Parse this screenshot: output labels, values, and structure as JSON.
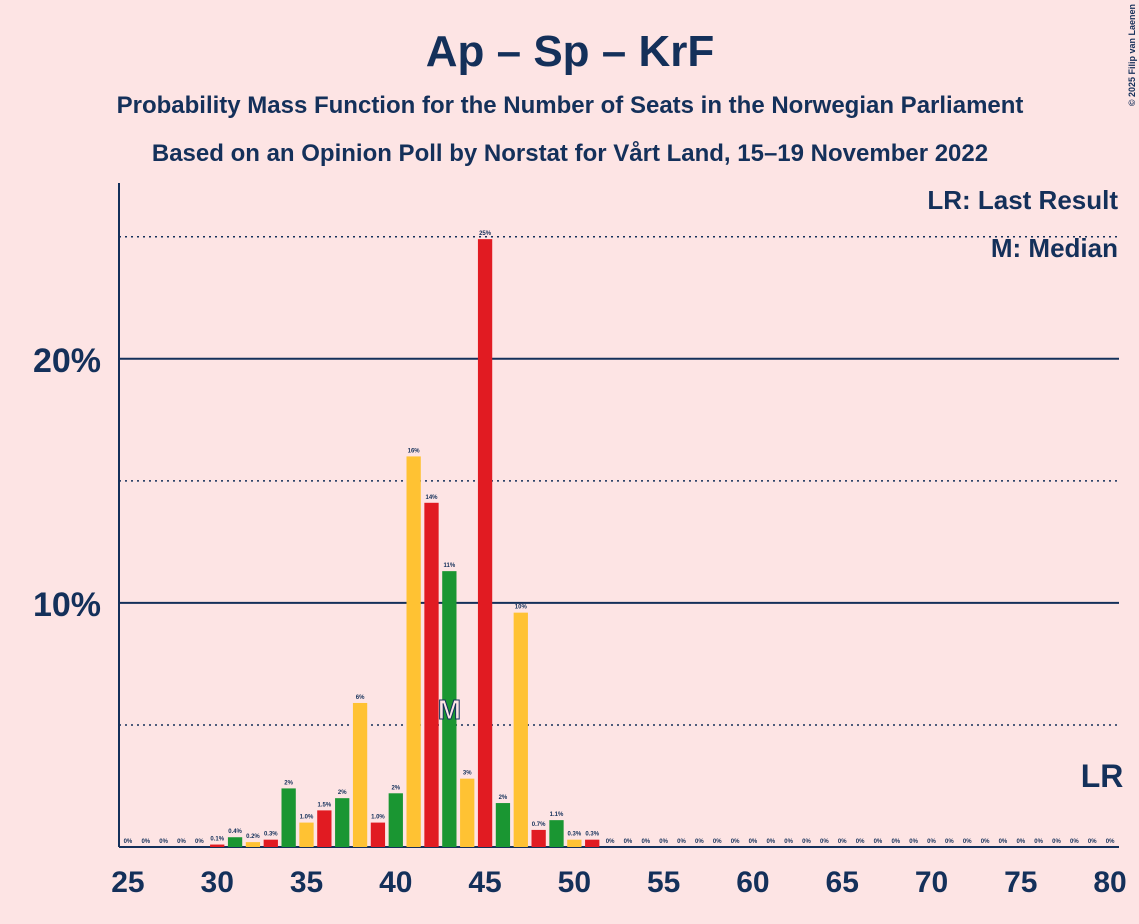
{
  "chart_data": {
    "type": "bar",
    "title": "Ap – Sp – KrF",
    "subtitle": "Probability Mass Function for the Number of Seats in the Norwegian Parliament",
    "subtitle2": "Based on an Opinion Poll by Norstat for Vårt Land, 15–19 November 2022",
    "copyright": "© 2025 Filip van Laenen",
    "legend": [
      "LR: Last Result",
      "M: Median"
    ],
    "x": [
      25,
      26,
      27,
      28,
      29,
      30,
      31,
      32,
      33,
      34,
      35,
      36,
      37,
      38,
      39,
      40,
      41,
      42,
      43,
      44,
      45,
      46,
      47,
      48,
      49,
      50,
      51,
      52,
      53,
      54,
      55,
      56,
      57,
      58,
      59,
      60,
      61,
      62,
      63,
      64,
      65,
      66,
      67,
      68,
      69,
      70,
      71,
      72,
      73,
      74,
      75,
      76,
      77,
      78,
      79,
      80
    ],
    "values": [
      0,
      0,
      0,
      0,
      0,
      0.1,
      0.4,
      0.2,
      0.3,
      2.4,
      1.0,
      1.5,
      2.0,
      5.9,
      1.0,
      2.2,
      16.0,
      14.1,
      11.3,
      2.8,
      24.9,
      1.8,
      9.6,
      0.7,
      1.1,
      0.3,
      0.3,
      0,
      0,
      0,
      0,
      0,
      0,
      0,
      0,
      0,
      0,
      0,
      0,
      0,
      0,
      0,
      0,
      0,
      0,
      0,
      0,
      0,
      0,
      0,
      0,
      0,
      0,
      0,
      0,
      0
    ],
    "value_labels": [
      "0%",
      "0%",
      "0%",
      "0%",
      "0%",
      "0.1%",
      "0.4%",
      "0.2%",
      "0.3%",
      "2%",
      "1.0%",
      "1.5%",
      "2%",
      "6%",
      "1.0%",
      "2%",
      "16%",
      "14%",
      "11%",
      "3%",
      "25%",
      "2%",
      "10%",
      "0.7%",
      "1.1%",
      "0.3%",
      "0.3%",
      "0%",
      "0%",
      "0%",
      "0%",
      "0%",
      "0%",
      "0%",
      "0%",
      "0%",
      "0%",
      "0%",
      "0%",
      "0%",
      "0%",
      "0%",
      "0%",
      "0%",
      "0%",
      "0%",
      "0%",
      "0%",
      "0%",
      "0%",
      "0%",
      "0%",
      "0%",
      "0%",
      "0%",
      "0%"
    ],
    "palette": [
      "#1a9632",
      "#ffc233",
      "#e11b22"
    ],
    "xlim": [
      24.5,
      80.5
    ],
    "xticks": [
      25,
      30,
      35,
      40,
      45,
      50,
      55,
      60,
      65,
      70,
      75,
      80
    ],
    "ylim": [
      0,
      27.2
    ],
    "yticks": [
      {
        "value": 10,
        "label": "10%"
      },
      {
        "value": 20,
        "label": "20%"
      }
    ],
    "minor_gridlines": [
      5,
      15,
      25
    ],
    "median": 43,
    "median_label": "M",
    "last_result": 80,
    "last_result_label": "LR"
  }
}
